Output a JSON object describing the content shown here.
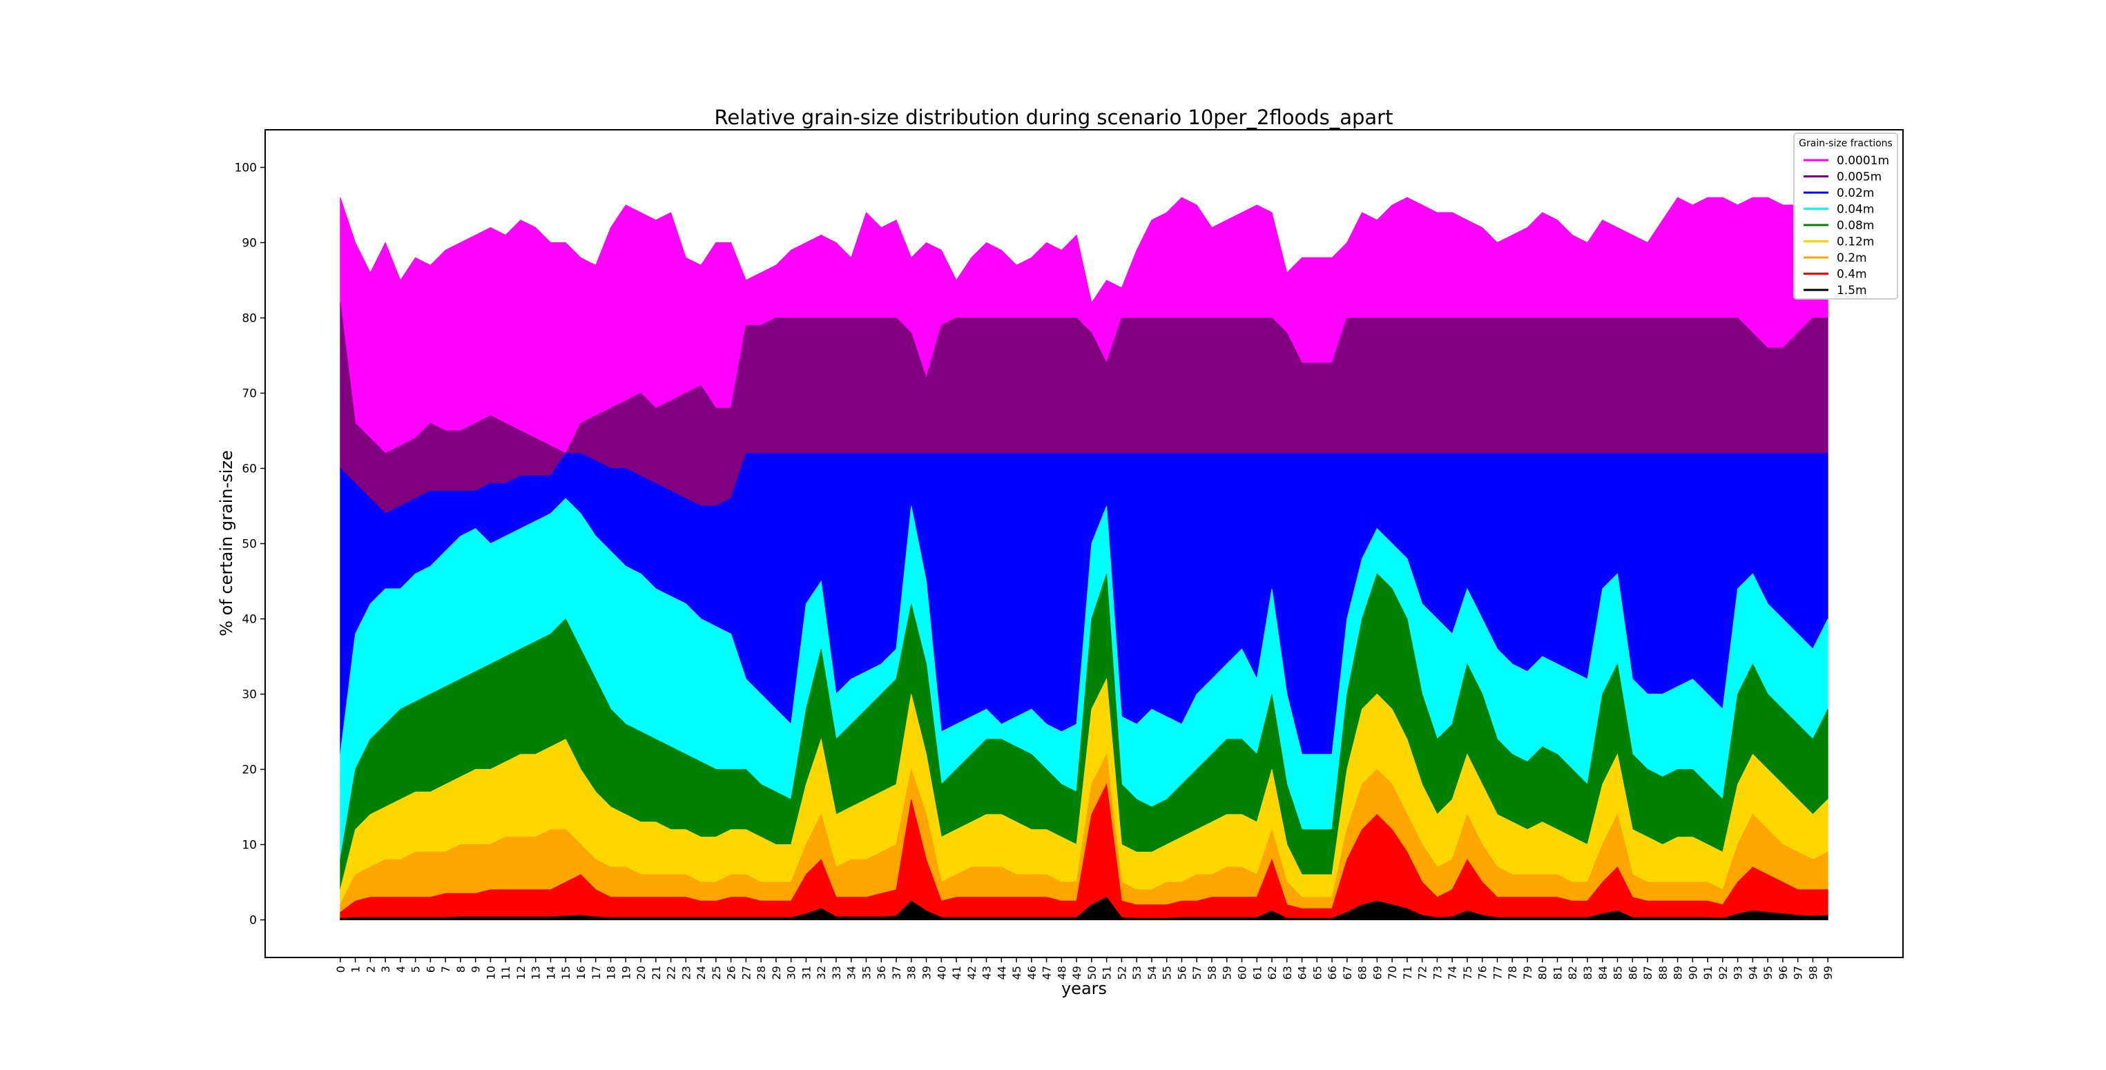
{
  "chart_data": {
    "type": "area",
    "title": "Relative grain-size distribution during scenario 10per_2floods_apart",
    "xlabel": "years",
    "ylabel": "% of certain grain-size",
    "xlim": [
      -5,
      104
    ],
    "ylim": [
      -5,
      105
    ],
    "x_ticks": [
      0,
      1,
      2,
      3,
      4,
      5,
      6,
      7,
      8,
      9,
      10,
      11,
      12,
      13,
      14,
      15,
      16,
      17,
      18,
      19,
      20,
      21,
      22,
      23,
      24,
      25,
      26,
      27,
      28,
      29,
      30,
      31,
      32,
      33,
      34,
      35,
      36,
      37,
      38,
      39,
      40,
      41,
      42,
      43,
      44,
      45,
      46,
      47,
      48,
      49,
      50,
      51,
      52,
      53,
      54,
      55,
      56,
      57,
      58,
      59,
      60,
      61,
      62,
      63,
      64,
      65,
      66,
      67,
      68,
      69,
      70,
      71,
      72,
      73,
      74,
      75,
      76,
      77,
      78,
      79,
      80,
      81,
      82,
      83,
      84,
      85,
      86,
      87,
      88,
      89,
      90,
      91,
      92,
      93,
      94,
      95,
      96,
      97,
      98,
      99
    ],
    "y_ticks": [
      0,
      10,
      20,
      30,
      40,
      50,
      60,
      70,
      80,
      90,
      100
    ],
    "grid": false,
    "legend": {
      "title": "Grain-size fractions",
      "placement": "top-right"
    },
    "series": [
      {
        "name": "0.0001m",
        "color": "#ff00ff",
        "level_pct": [
          96,
          90,
          86,
          90,
          85,
          88,
          87,
          89,
          90,
          91,
          92,
          91,
          93,
          92,
          90,
          90,
          88,
          87,
          92,
          95,
          94,
          93,
          94,
          88,
          87,
          90,
          90,
          85,
          86,
          87,
          89,
          90,
          91,
          90,
          88,
          94,
          92,
          93,
          88,
          90,
          89,
          85,
          88,
          90,
          89,
          87,
          88,
          90,
          89,
          91,
          82,
          85,
          84,
          89,
          93,
          94,
          96,
          95,
          92,
          93,
          94,
          95,
          94,
          86,
          88,
          88,
          88,
          90,
          94,
          93,
          95,
          96,
          95,
          94,
          94,
          93,
          92,
          90,
          91,
          92,
          94,
          93,
          91,
          90,
          93,
          92,
          91,
          90,
          93,
          96,
          95,
          96,
          96,
          95,
          96,
          96,
          95,
          95,
          94,
          94
        ]
      },
      {
        "name": "0.005m",
        "color": "#800080",
        "level_pct": [
          82,
          66,
          64,
          62,
          63,
          64,
          66,
          65,
          65,
          66,
          67,
          66,
          65,
          64,
          63,
          62,
          66,
          67,
          68,
          69,
          70,
          68,
          69,
          70,
          71,
          68,
          68,
          79,
          79,
          80,
          80,
          80,
          80,
          80,
          80,
          80,
          80,
          80,
          78,
          72,
          79,
          80,
          80,
          80,
          80,
          80,
          80,
          80,
          80,
          80,
          78,
          74,
          80,
          80,
          80,
          80,
          80,
          80,
          80,
          80,
          80,
          80,
          80,
          78,
          74,
          74,
          74,
          80,
          80,
          80,
          80,
          80,
          80,
          80,
          80,
          80,
          80,
          80,
          80,
          80,
          80,
          80,
          80,
          80,
          80,
          80,
          80,
          80,
          80,
          80,
          80,
          80,
          80,
          80,
          78,
          76,
          76,
          78,
          80,
          80
        ]
      },
      {
        "name": "0.02m",
        "color": "#0000ff",
        "level_pct": [
          60,
          58,
          56,
          54,
          55,
          56,
          57,
          57,
          57,
          57,
          58,
          58,
          59,
          59,
          59,
          62,
          62,
          61,
          60,
          60,
          59,
          58,
          57,
          56,
          55,
          55,
          56,
          62,
          62,
          62,
          62,
          62,
          62,
          62,
          62,
          62,
          62,
          62,
          62,
          62,
          62,
          62,
          62,
          62,
          62,
          62,
          62,
          62,
          62,
          62,
          62,
          62,
          62,
          62,
          62,
          62,
          62,
          62,
          62,
          62,
          62,
          62,
          62,
          62,
          62,
          62,
          62,
          62,
          62,
          62,
          62,
          62,
          62,
          62,
          62,
          62,
          62,
          62,
          62,
          62,
          62,
          62,
          62,
          62,
          62,
          62,
          62,
          62,
          62,
          62,
          62,
          62,
          62,
          62,
          62,
          62,
          62,
          62,
          62,
          62
        ]
      },
      {
        "name": "0.04m",
        "color": "#00ffff",
        "level_pct": [
          22,
          38,
          42,
          44,
          44,
          46,
          47,
          49,
          51,
          52,
          50,
          51,
          52,
          53,
          54,
          56,
          54,
          51,
          49,
          47,
          46,
          44,
          43,
          42,
          40,
          39,
          38,
          32,
          30,
          28,
          26,
          42,
          45,
          30,
          32,
          33,
          34,
          36,
          55,
          45,
          25,
          26,
          27,
          28,
          26,
          27,
          28,
          26,
          25,
          26,
          50,
          55,
          27,
          26,
          28,
          27,
          26,
          30,
          32,
          34,
          36,
          32,
          44,
          30,
          22,
          22,
          22,
          40,
          48,
          52,
          50,
          48,
          42,
          40,
          38,
          44,
          40,
          36,
          34,
          33,
          35,
          34,
          33,
          32,
          44,
          46,
          32,
          30,
          30,
          31,
          32,
          30,
          28,
          44,
          46,
          42,
          40,
          38,
          36,
          40
        ]
      },
      {
        "name": "0.08m",
        "color": "#008000",
        "level_pct": [
          8,
          20,
          24,
          26,
          28,
          29,
          30,
          31,
          32,
          33,
          34,
          35,
          36,
          37,
          38,
          40,
          36,
          32,
          28,
          26,
          25,
          24,
          23,
          22,
          21,
          20,
          20,
          20,
          18,
          17,
          16,
          28,
          36,
          24,
          26,
          28,
          30,
          32,
          42,
          34,
          18,
          20,
          22,
          24,
          24,
          23,
          22,
          20,
          18,
          17,
          40,
          46,
          18,
          16,
          15,
          16,
          18,
          20,
          22,
          24,
          24,
          22,
          30,
          18,
          12,
          12,
          12,
          30,
          40,
          46,
          44,
          40,
          30,
          24,
          26,
          34,
          30,
          24,
          22,
          21,
          23,
          22,
          20,
          18,
          30,
          34,
          22,
          20,
          19,
          20,
          20,
          18,
          16,
          30,
          34,
          30,
          28,
          26,
          24,
          28
        ]
      },
      {
        "name": "0.12m",
        "color": "#ffd700",
        "level_pct": [
          4,
          12,
          14,
          15,
          16,
          17,
          17,
          18,
          19,
          20,
          20,
          21,
          22,
          22,
          23,
          24,
          20,
          17,
          15,
          14,
          13,
          13,
          12,
          12,
          11,
          11,
          12,
          12,
          11,
          10,
          10,
          18,
          24,
          14,
          15,
          16,
          17,
          18,
          30,
          22,
          11,
          12,
          13,
          14,
          14,
          13,
          12,
          12,
          11,
          10,
          28,
          32,
          10,
          9,
          9,
          10,
          11,
          12,
          13,
          14,
          14,
          13,
          20,
          10,
          6,
          6,
          6,
          20,
          28,
          30,
          28,
          24,
          18,
          14,
          16,
          22,
          18,
          14,
          13,
          12,
          13,
          12,
          11,
          10,
          18,
          22,
          12,
          11,
          10,
          11,
          11,
          10,
          9,
          18,
          22,
          20,
          18,
          16,
          14,
          16
        ]
      },
      {
        "name": "0.2m",
        "color": "#ffa500",
        "level_pct": [
          2,
          6,
          7,
          8,
          8,
          9,
          9,
          9,
          10,
          10,
          10,
          11,
          11,
          11,
          12,
          12,
          10,
          8,
          7,
          7,
          6,
          6,
          6,
          6,
          5,
          5,
          6,
          6,
          5,
          5,
          5,
          10,
          14,
          7,
          8,
          8,
          9,
          10,
          20,
          14,
          5,
          6,
          7,
          7,
          7,
          6,
          6,
          6,
          5,
          5,
          18,
          22,
          5,
          4,
          4,
          5,
          5,
          6,
          6,
          7,
          7,
          6,
          12,
          5,
          3,
          3,
          3,
          12,
          18,
          20,
          18,
          14,
          10,
          7,
          8,
          14,
          10,
          7,
          6,
          6,
          6,
          6,
          5,
          5,
          10,
          14,
          6,
          5,
          5,
          5,
          5,
          5,
          4,
          10,
          14,
          12,
          10,
          9,
          8,
          9
        ]
      },
      {
        "name": "0.4m",
        "color": "#ff0000",
        "level_pct": [
          1,
          2.5,
          3,
          3,
          3,
          3,
          3,
          3.5,
          3.5,
          3.5,
          4,
          4,
          4,
          4,
          4,
          5,
          6,
          4,
          3,
          3,
          3,
          3,
          3,
          3,
          2.5,
          2.5,
          3,
          3,
          2.5,
          2.5,
          2.5,
          6,
          8,
          3,
          3,
          3,
          3.5,
          4,
          16,
          8,
          2.5,
          3,
          3,
          3,
          3,
          3,
          3,
          3,
          2.5,
          2.5,
          14,
          18,
          2.5,
          2,
          2,
          2,
          2.5,
          2.5,
          3,
          3,
          3,
          3,
          8,
          2,
          1.5,
          1.5,
          1.5,
          8,
          12,
          14,
          12,
          9,
          5,
          3,
          4,
          8,
          5,
          3,
          3,
          3,
          3,
          3,
          2.5,
          2.5,
          5,
          7,
          3,
          2.5,
          2.5,
          2.5,
          2.5,
          2.5,
          2,
          5,
          7,
          6,
          5,
          4,
          4,
          4
        ]
      },
      {
        "name": "1.5m",
        "color": "#000000",
        "level_pct": [
          0.2,
          0.3,
          0.3,
          0.3,
          0.3,
          0.3,
          0.3,
          0.3,
          0.4,
          0.4,
          0.4,
          0.4,
          0.4,
          0.4,
          0.4,
          0.5,
          0.6,
          0.4,
          0.3,
          0.3,
          0.3,
          0.3,
          0.3,
          0.3,
          0.3,
          0.3,
          0.3,
          0.3,
          0.3,
          0.3,
          0.3,
          0.8,
          1.5,
          0.4,
          0.4,
          0.4,
          0.4,
          0.5,
          2.5,
          1.2,
          0.3,
          0.3,
          0.3,
          0.3,
          0.3,
          0.3,
          0.3,
          0.3,
          0.3,
          0.3,
          2,
          3,
          0.3,
          0.2,
          0.2,
          0.2,
          0.3,
          0.3,
          0.3,
          0.3,
          0.3,
          0.3,
          1.2,
          0.2,
          0.2,
          0.2,
          0.2,
          1,
          2,
          2.5,
          2,
          1.5,
          0.6,
          0.3,
          0.4,
          1.2,
          0.6,
          0.3,
          0.3,
          0.3,
          0.3,
          0.3,
          0.3,
          0.3,
          0.8,
          1.2,
          0.3,
          0.3,
          0.3,
          0.3,
          0.3,
          0.3,
          0.2,
          0.8,
          1.2,
          1,
          0.8,
          0.6,
          0.5,
          0.6
        ]
      }
    ]
  }
}
